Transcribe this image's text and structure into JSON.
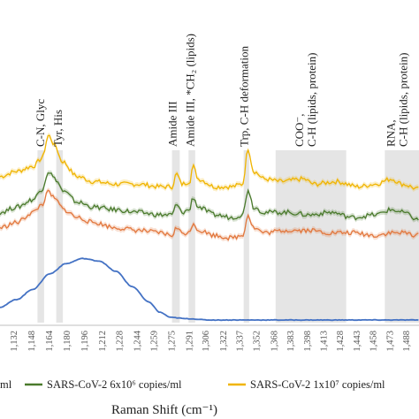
{
  "chart_data": {
    "type": "line",
    "xlabel": "Raman Shift (cm⁻¹)",
    "x_ticks": [
      "1,132",
      "1,148",
      "1,164",
      "1,180",
      "1,196",
      "1,212",
      "1,228",
      "1,244",
      "1,259",
      "1,275",
      "1,291",
      "1,306",
      "1,322",
      "1,337",
      "1,352",
      "1,368",
      "1,383",
      "1,398",
      "1,413",
      "1,428",
      "1,443",
      "1,458",
      "1,473",
      "1,488"
    ],
    "xlim": [
      1120,
      1500
    ],
    "grid": false,
    "bands": [
      {
        "from": 1154,
        "to": 1160
      },
      {
        "from": 1171,
        "to": 1177
      },
      {
        "from": 1276,
        "to": 1283
      },
      {
        "from": 1291,
        "to": 1297
      },
      {
        "from": 1341,
        "to": 1346
      },
      {
        "from": 1370,
        "to": 1434
      },
      {
        "from": 1469,
        "to": 1500
      }
    ],
    "annotations": [
      {
        "line1": "C-N, Glyc",
        "line2": "",
        "x": 1160
      },
      {
        "line1": "Tyr, His",
        "line2": "",
        "x": 1176
      },
      {
        "line1": "Amide III",
        "line2": "",
        "x": 1280
      },
      {
        "line1": "Amide III, *CH₂ (lipids)",
        "line2": "",
        "x": 1296
      },
      {
        "line1": "Trp, C-H deformation",
        "line2": "",
        "x": 1345
      },
      {
        "line1": "COO⁻,",
        "line2": "C-H (lipids, protein)",
        "x": 1395
      },
      {
        "line1": "RNA,",
        "line2": "C-H (lipids, protein)",
        "x": 1478
      }
    ],
    "series": [
      {
        "name": "SARS-CoV-2 1x10⁷ copies/ml",
        "color": "#f0b400",
        "points": [
          [
            1120,
            0.56
          ],
          [
            1135,
            0.58
          ],
          [
            1150,
            0.6
          ],
          [
            1158,
            0.63
          ],
          [
            1164,
            0.72
          ],
          [
            1170,
            0.68
          ],
          [
            1176,
            0.62
          ],
          [
            1190,
            0.56
          ],
          [
            1205,
            0.54
          ],
          [
            1225,
            0.53
          ],
          [
            1245,
            0.53
          ],
          [
            1265,
            0.52
          ],
          [
            1276,
            0.52
          ],
          [
            1280,
            0.57
          ],
          [
            1285,
            0.53
          ],
          [
            1292,
            0.54
          ],
          [
            1295,
            0.6
          ],
          [
            1300,
            0.55
          ],
          [
            1315,
            0.52
          ],
          [
            1330,
            0.52
          ],
          [
            1340,
            0.53
          ],
          [
            1345,
            0.67
          ],
          [
            1350,
            0.58
          ],
          [
            1360,
            0.55
          ],
          [
            1375,
            0.54
          ],
          [
            1395,
            0.55
          ],
          [
            1405,
            0.53
          ],
          [
            1425,
            0.54
          ],
          [
            1445,
            0.52
          ],
          [
            1460,
            0.53
          ],
          [
            1475,
            0.55
          ],
          [
            1485,
            0.53
          ],
          [
            1500,
            0.51
          ]
        ]
      },
      {
        "name": "SARS-CoV-2 6x10⁶ copies/ml",
        "color": "#4a7a2c",
        "points": [
          [
            1120,
            0.42
          ],
          [
            1135,
            0.44
          ],
          [
            1150,
            0.47
          ],
          [
            1158,
            0.51
          ],
          [
            1164,
            0.58
          ],
          [
            1170,
            0.55
          ],
          [
            1178,
            0.5
          ],
          [
            1190,
            0.46
          ],
          [
            1205,
            0.44
          ],
          [
            1225,
            0.43
          ],
          [
            1245,
            0.42
          ],
          [
            1265,
            0.41
          ],
          [
            1276,
            0.41
          ],
          [
            1280,
            0.45
          ],
          [
            1285,
            0.42
          ],
          [
            1292,
            0.43
          ],
          [
            1295,
            0.48
          ],
          [
            1300,
            0.44
          ],
          [
            1315,
            0.41
          ],
          [
            1330,
            0.4
          ],
          [
            1340,
            0.41
          ],
          [
            1345,
            0.51
          ],
          [
            1350,
            0.44
          ],
          [
            1360,
            0.42
          ],
          [
            1380,
            0.42
          ],
          [
            1400,
            0.41
          ],
          [
            1420,
            0.42
          ],
          [
            1440,
            0.4
          ],
          [
            1460,
            0.41
          ],
          [
            1475,
            0.43
          ],
          [
            1485,
            0.42
          ],
          [
            1500,
            0.39
          ]
        ]
      },
      {
        "name": "",
        "color": "#e2773d",
        "points": [
          [
            1120,
            0.36
          ],
          [
            1135,
            0.38
          ],
          [
            1150,
            0.42
          ],
          [
            1158,
            0.45
          ],
          [
            1164,
            0.5
          ],
          [
            1170,
            0.47
          ],
          [
            1178,
            0.43
          ],
          [
            1190,
            0.4
          ],
          [
            1205,
            0.38
          ],
          [
            1225,
            0.36
          ],
          [
            1245,
            0.35
          ],
          [
            1265,
            0.34
          ],
          [
            1276,
            0.33
          ],
          [
            1280,
            0.36
          ],
          [
            1285,
            0.34
          ],
          [
            1292,
            0.34
          ],
          [
            1295,
            0.38
          ],
          [
            1300,
            0.35
          ],
          [
            1315,
            0.33
          ],
          [
            1330,
            0.32
          ],
          [
            1340,
            0.33
          ],
          [
            1345,
            0.41
          ],
          [
            1350,
            0.36
          ],
          [
            1360,
            0.34
          ],
          [
            1380,
            0.35
          ],
          [
            1400,
            0.35
          ],
          [
            1420,
            0.34
          ],
          [
            1440,
            0.34
          ],
          [
            1460,
            0.33
          ],
          [
            1475,
            0.34
          ],
          [
            1485,
            0.34
          ],
          [
            1500,
            0.33
          ]
        ]
      },
      {
        "name": "",
        "color": "#4472c4",
        "points": [
          [
            1120,
            0.05
          ],
          [
            1135,
            0.08
          ],
          [
            1150,
            0.12
          ],
          [
            1165,
            0.18
          ],
          [
            1180,
            0.22
          ],
          [
            1195,
            0.24
          ],
          [
            1210,
            0.23
          ],
          [
            1225,
            0.19
          ],
          [
            1240,
            0.13
          ],
          [
            1255,
            0.07
          ],
          [
            1265,
            0.03
          ],
          [
            1275,
            0.01
          ],
          [
            1290,
            0.005
          ],
          [
            1310,
            0.0
          ],
          [
            1340,
            0.0
          ],
          [
            1380,
            0.0
          ],
          [
            1420,
            0.0
          ],
          [
            1460,
            0.0
          ],
          [
            1500,
            0.0
          ]
        ]
      }
    ]
  },
  "legend": {
    "first_tail": "ml",
    "item1": "SARS-CoV-2 6x10⁶ copies/ml",
    "item2": "SARS-CoV-2 1x10⁷ copies/ml"
  }
}
